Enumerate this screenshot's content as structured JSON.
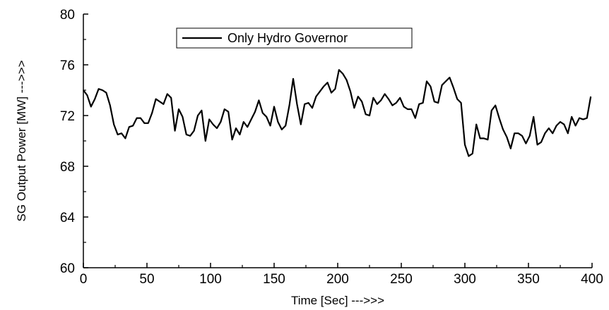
{
  "chart_data": {
    "type": "line",
    "title": "",
    "xlabel": "Time [Sec] --->>>",
    "ylabel": "SG Output Power [MW] --->>>",
    "xlim": [
      0,
      400
    ],
    "ylim": [
      60,
      80
    ],
    "xticks": [
      0,
      50,
      100,
      150,
      200,
      250,
      300,
      350,
      400
    ],
    "xtick_labels": [
      "0",
      "50",
      "100",
      "150",
      "200",
      "250",
      "300",
      "350",
      "400"
    ],
    "yticks": [
      60,
      64,
      68,
      72,
      76,
      80
    ],
    "ytick_labels": [
      "60",
      "64",
      "68",
      "72",
      "76",
      "80"
    ],
    "grid": false,
    "legend_position": "top-left",
    "series": [
      {
        "name": "Only Hydro Governor",
        "color": "#000000",
        "x": [
          0,
          3,
          6,
          9,
          12,
          15,
          18,
          21,
          24,
          27,
          30,
          33,
          36,
          39,
          42,
          45,
          48,
          51,
          54,
          57,
          60,
          63,
          66,
          69,
          72,
          75,
          78,
          81,
          84,
          87,
          90,
          93,
          96,
          99,
          102,
          105,
          108,
          111,
          114,
          117,
          120,
          123,
          126,
          129,
          132,
          135,
          138,
          141,
          144,
          147,
          150,
          153,
          156,
          159,
          162,
          165,
          168,
          171,
          174,
          177,
          180,
          183,
          186,
          189,
          192,
          195,
          198,
          201,
          204,
          207,
          210,
          213,
          216,
          219,
          222,
          225,
          228,
          231,
          234,
          237,
          240,
          243,
          246,
          249,
          252,
          255,
          258,
          261,
          264,
          267,
          270,
          273,
          276,
          279,
          282,
          285,
          288,
          291,
          294,
          297,
          300,
          303,
          306,
          309,
          312,
          315,
          318,
          321,
          324,
          327,
          330,
          333,
          336,
          339,
          342,
          345,
          348,
          351,
          354,
          357,
          360,
          363,
          366,
          369,
          372,
          375,
          378,
          381,
          384,
          387,
          390,
          393,
          396,
          399
        ],
        "values": [
          74.0,
          73.6,
          72.7,
          73.3,
          74.1,
          74.0,
          73.8,
          72.8,
          71.3,
          70.5,
          70.6,
          70.2,
          71.1,
          71.2,
          71.8,
          71.8,
          71.4,
          71.4,
          72.2,
          73.3,
          73.1,
          72.9,
          73.7,
          73.4,
          70.8,
          72.5,
          71.9,
          70.5,
          70.4,
          70.8,
          72.0,
          72.4,
          70.0,
          71.7,
          71.3,
          71.0,
          71.5,
          72.5,
          72.3,
          70.1,
          71.0,
          70.5,
          71.5,
          71.1,
          71.7,
          72.3,
          73.2,
          72.2,
          71.9,
          71.2,
          72.7,
          71.5,
          70.9,
          71.2,
          72.8,
          74.9,
          72.9,
          71.3,
          72.9,
          73.0,
          72.6,
          73.5,
          73.9,
          74.3,
          74.6,
          73.8,
          74.1,
          75.6,
          75.3,
          74.8,
          73.9,
          72.6,
          73.5,
          73.1,
          72.1,
          72.0,
          73.4,
          72.9,
          73.2,
          73.7,
          73.3,
          72.8,
          73.0,
          73.4,
          72.7,
          72.5,
          72.5,
          71.8,
          72.9,
          73.0,
          74.7,
          74.3,
          73.1,
          73.0,
          74.4,
          74.7,
          75.0,
          74.2,
          73.3,
          73.0,
          69.7,
          68.8,
          69.0,
          71.3,
          70.2,
          70.2,
          70.1,
          72.4,
          72.8,
          71.8,
          70.9,
          70.3,
          69.4,
          70.6,
          70.6,
          70.4,
          69.8,
          70.4,
          71.9,
          69.7,
          69.9,
          70.6,
          71.0,
          70.6,
          71.2,
          71.5,
          71.3,
          70.6,
          71.9,
          71.2,
          71.8,
          71.7,
          71.8,
          73.5
        ]
      }
    ]
  }
}
